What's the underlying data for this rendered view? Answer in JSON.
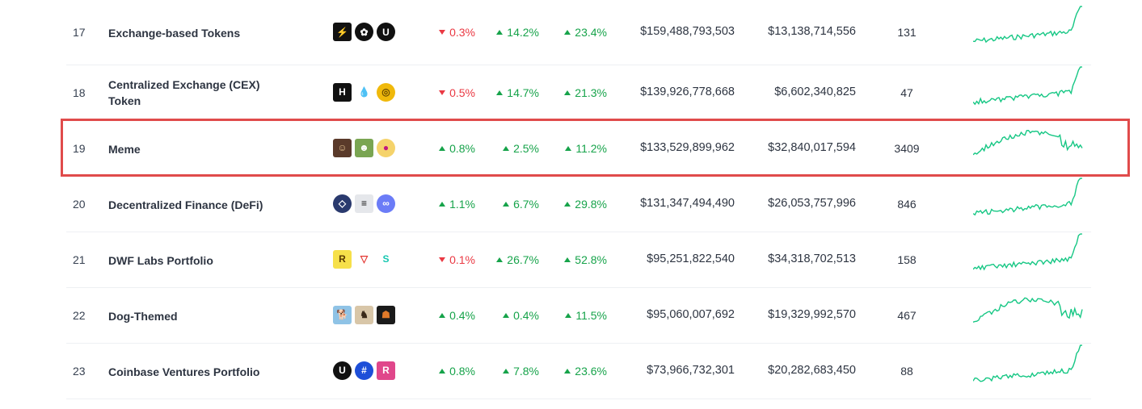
{
  "rows": [
    {
      "rank": "17",
      "name": "Exchange-based Tokens",
      "p1": {
        "dir": "down",
        "val": "0.3%"
      },
      "p2": {
        "dir": "up",
        "val": "14.2%"
      },
      "p3": {
        "dir": "up",
        "val": "23.4%"
      },
      "mcap": "$159,488,793,503",
      "volume": "$13,138,714,556",
      "count": "131",
      "icons": [
        {
          "name": "lightning-coin-icon",
          "bg": "#111",
          "fg": "#b7f03c",
          "glyph": "⚡",
          "round": false
        },
        {
          "name": "butterfly-coin-icon",
          "bg": "#111",
          "fg": "#ffffff",
          "glyph": "✿",
          "round": true
        },
        {
          "name": "u-coin-icon",
          "bg": "#111",
          "fg": "#ffffff",
          "glyph": "U",
          "round": true
        }
      ]
    },
    {
      "rank": "18",
      "name": "Centralized Exchange (CEX) Token",
      "p1": {
        "dir": "down",
        "val": "0.5%"
      },
      "p2": {
        "dir": "up",
        "val": "14.7%"
      },
      "p3": {
        "dir": "up",
        "val": "21.3%"
      },
      "mcap": "$139,926,778,668",
      "volume": "$6,602,340,825",
      "count": "47",
      "icons": [
        {
          "name": "h-coin-icon",
          "bg": "#111",
          "fg": "#ffffff",
          "glyph": "H",
          "round": false
        },
        {
          "name": "flame-coin-icon",
          "bg": "#ffffff",
          "fg": "#2b77c9",
          "glyph": "💧",
          "round": false
        },
        {
          "name": "gold-coin-icon",
          "bg": "#f0b90b",
          "fg": "#6b4c00",
          "glyph": "◎",
          "round": true
        }
      ]
    },
    {
      "rank": "19",
      "name": "Meme",
      "p1": {
        "dir": "up",
        "val": "0.8%"
      },
      "p2": {
        "dir": "up",
        "val": "2.5%"
      },
      "p3": {
        "dir": "up",
        "val": "11.2%"
      },
      "mcap": "$133,529,899,962",
      "volume": "$32,840,017,594",
      "count": "3409",
      "icons": [
        {
          "name": "portrait-coin-icon",
          "bg": "#5a3a2a",
          "fg": "#e0c090",
          "glyph": "☺",
          "round": false
        },
        {
          "name": "pepe-coin-icon",
          "bg": "#7aa552",
          "fg": "#ffffff",
          "glyph": "☻",
          "round": false
        },
        {
          "name": "pink-coin-icon",
          "bg": "#f5d36b",
          "fg": "#c2187e",
          "glyph": "●",
          "round": true
        }
      ]
    },
    {
      "rank": "20",
      "name": "Decentralized Finance (DeFi)",
      "p1": {
        "dir": "up",
        "val": "1.1%"
      },
      "p2": {
        "dir": "up",
        "val": "6.7%"
      },
      "p3": {
        "dir": "up",
        "val": "29.8%"
      },
      "mcap": "$131,347,494,490",
      "volume": "$26,053,757,996",
      "count": "846",
      "icons": [
        {
          "name": "chainlink-coin-icon",
          "bg": "#2a3a6e",
          "fg": "#ffffff",
          "glyph": "◇",
          "round": true
        },
        {
          "name": "stripes-coin-icon",
          "bg": "#e5e7eb",
          "fg": "#111",
          "glyph": "≡",
          "round": false
        },
        {
          "name": "link-coin-icon",
          "bg": "#6b7cf7",
          "fg": "#ffffff",
          "glyph": "∞",
          "round": true
        }
      ]
    },
    {
      "rank": "21",
      "name": "DWF Labs Portfolio",
      "p1": {
        "dir": "down",
        "val": "0.1%"
      },
      "p2": {
        "dir": "up",
        "val": "26.7%"
      },
      "p3": {
        "dir": "up",
        "val": "52.8%"
      },
      "mcap": "$95,251,822,540",
      "volume": "$34,318,702,513",
      "count": "158",
      "icons": [
        {
          "name": "r-coin-icon",
          "bg": "#f6e04a",
          "fg": "#5b3b00",
          "glyph": "R",
          "round": false
        },
        {
          "name": "tron-coin-icon",
          "bg": "#ffffff",
          "fg": "#e3342f",
          "glyph": "▽",
          "round": false
        },
        {
          "name": "s-coin-icon",
          "bg": "#ffffff",
          "fg": "#16c7b0",
          "glyph": "S",
          "round": false
        }
      ]
    },
    {
      "rank": "22",
      "name": "Dog-Themed",
      "p1": {
        "dir": "up",
        "val": "0.4%"
      },
      "p2": {
        "dir": "up",
        "val": "0.4%"
      },
      "p3": {
        "dir": "up",
        "val": "11.5%"
      },
      "mcap": "$95,060,007,692",
      "volume": "$19,329,992,570",
      "count": "467",
      "icons": [
        {
          "name": "dog-blue-coin-icon",
          "bg": "#8fc3e6",
          "fg": "#ffffff",
          "glyph": "🐕",
          "round": false
        },
        {
          "name": "dog-hat-coin-icon",
          "bg": "#d8c6a8",
          "fg": "#3a2a1a",
          "glyph": "♞",
          "round": false
        },
        {
          "name": "dog-dark-coin-icon",
          "bg": "#1a1a1a",
          "fg": "#e07a2a",
          "glyph": "☗",
          "round": false
        }
      ]
    },
    {
      "rank": "23",
      "name": "Coinbase Ventures Portfolio",
      "p1": {
        "dir": "up",
        "val": "0.8%"
      },
      "p2": {
        "dir": "up",
        "val": "7.8%"
      },
      "p3": {
        "dir": "up",
        "val": "23.6%"
      },
      "mcap": "$73,966,732,301",
      "volume": "$20,282,683,450",
      "count": "88",
      "icons": [
        {
          "name": "u-coin-icon",
          "bg": "#111",
          "fg": "#ffffff",
          "glyph": "U",
          "round": true
        },
        {
          "name": "hash-coin-icon",
          "bg": "#1e4fd8",
          "fg": "#ffffff",
          "glyph": "#",
          "round": true
        },
        {
          "name": "r-gradient-coin-icon",
          "bg": "#e0478b",
          "fg": "#ffffff",
          "glyph": "R",
          "round": false
        }
      ]
    }
  ],
  "highlight_color": "#e04b4b",
  "up_color": "#16a34a",
  "down_color": "#ea3943",
  "sparkline_color": "#16c784"
}
